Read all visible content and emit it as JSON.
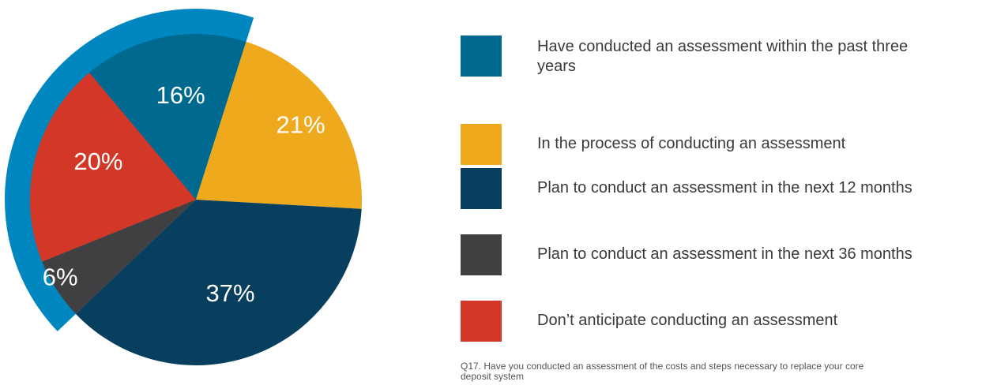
{
  "chart_data": {
    "type": "pie",
    "slices": [
      {
        "label": "Have conducted an assessment within the past three years",
        "value": 16,
        "display": "16%",
        "color": "#00698f"
      },
      {
        "label": "In the process of conducting an assessment",
        "value": 21,
        "display": "21%",
        "color": "#eea91c"
      },
      {
        "label": "Plan to conduct an assessment in the next 12 months",
        "value": 37,
        "display": "37%",
        "color": "#083f5e"
      },
      {
        "label": "Plan to conduct an assessment in the next 36 months",
        "value": 6,
        "display": "6%",
        "color": "#404042"
      },
      {
        "label": "Don’t anticipate conducting an assessment",
        "value": 20,
        "display": "20%",
        "color": "#d23727"
      }
    ],
    "highlight_ring_color": "#0087bf"
  },
  "legend": {
    "items": [
      {
        "label": "Have conducted an assessment within the past three years"
      },
      {
        "label": "In the process of conducting an assessment"
      },
      {
        "label": "Plan to conduct an assessment in the next 12 months"
      },
      {
        "label": "Plan to conduct an assessment in the next 36 months"
      },
      {
        "label": "Don’t anticipate conducting an assessment"
      }
    ]
  },
  "footnote": "Q17. Have you conducted an assessment of the costs and steps necessary to replace your core deposit system"
}
